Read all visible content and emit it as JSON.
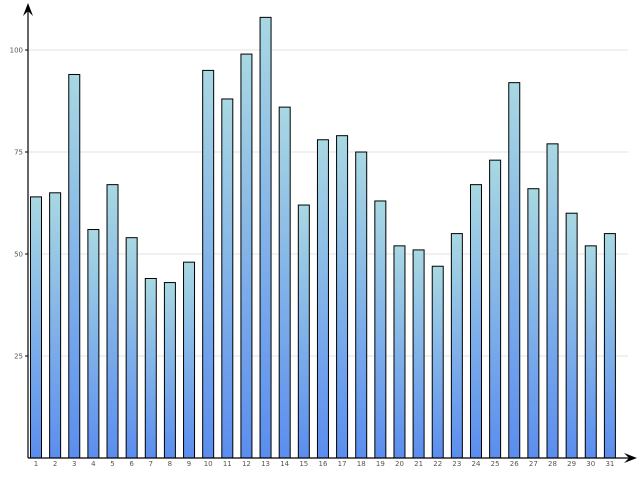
{
  "chart_data": {
    "type": "bar",
    "title": "",
    "xlabel": "",
    "ylabel": "",
    "categories": [
      "1",
      "2",
      "3",
      "4",
      "5",
      "6",
      "7",
      "8",
      "9",
      "10",
      "11",
      "12",
      "13",
      "14",
      "15",
      "16",
      "17",
      "18",
      "19",
      "20",
      "21",
      "22",
      "23",
      "24",
      "25",
      "26",
      "27",
      "28",
      "29",
      "30",
      "31"
    ],
    "values": [
      64,
      65,
      94,
      56,
      67,
      54,
      44,
      43,
      48,
      95,
      88,
      99,
      108,
      86,
      62,
      78,
      79,
      75,
      63,
      52,
      51,
      47,
      55,
      67,
      73,
      92,
      66,
      77,
      60,
      52,
      55
    ],
    "ylim": [
      0,
      110
    ],
    "yticks": [
      25,
      50,
      75,
      100
    ],
    "ytick_labels": [
      "25",
      "50",
      "75",
      "100"
    ],
    "grid": "horizontal",
    "legend": "none",
    "colors": {
      "bar_top": "#a8d8e2",
      "bar_bottom": "#5b8def",
      "bar_stroke": "#000000",
      "grid": "#e3e3e3",
      "axis": "#000000"
    }
  }
}
